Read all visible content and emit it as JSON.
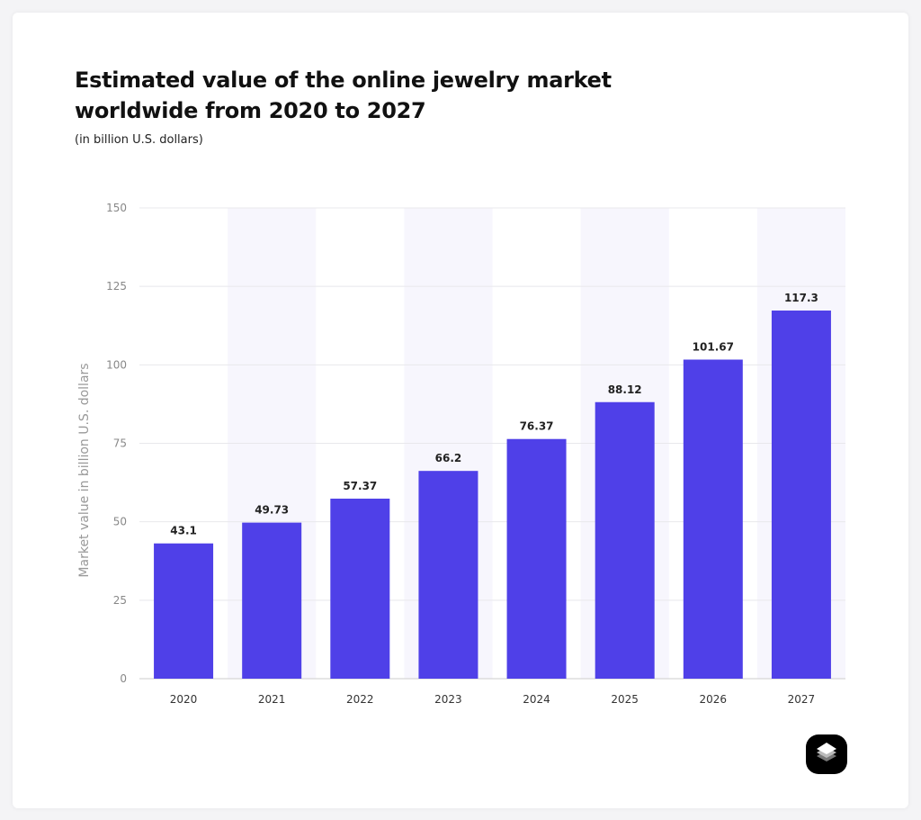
{
  "chart_data": {
    "type": "bar",
    "title": "Estimated value of the online jewelry market worldwide from 2020 to 2027",
    "subtitle": "(in billion U.S. dollars)",
    "xlabel": "",
    "ylabel": "Market value in billion U.S. dollars",
    "categories": [
      "2020",
      "2021",
      "2022",
      "2023",
      "2024",
      "2025",
      "2026",
      "2027"
    ],
    "values": [
      43.1,
      49.73,
      57.37,
      66.2,
      76.37,
      88.12,
      101.67,
      117.3
    ],
    "value_labels": [
      "43.1",
      "49.73",
      "57.37",
      "66.2",
      "76.37",
      "88.12",
      "101.67",
      "117.3"
    ],
    "ylim": [
      0,
      150
    ],
    "yticks": [
      0,
      25,
      50,
      75,
      100,
      125,
      150
    ],
    "grid": true,
    "bar_color": "#4f40e8",
    "band_color": "#f7f6fd"
  },
  "logo": {
    "icon": "layers-icon"
  }
}
